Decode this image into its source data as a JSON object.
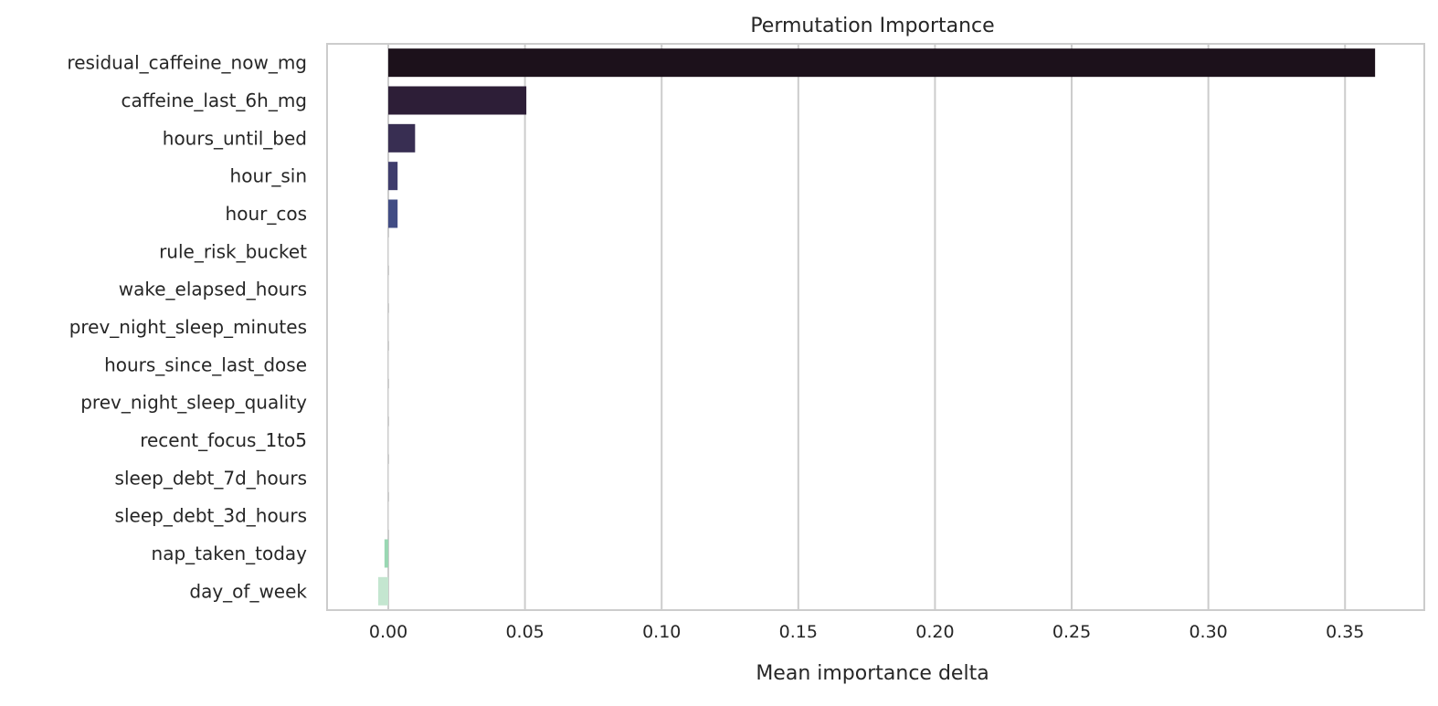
{
  "chart_data": {
    "type": "bar",
    "orientation": "horizontal",
    "title": "Permutation Importance",
    "xlabel": "Mean importance delta",
    "ylabel": "",
    "xlim": [
      -0.0224,
      0.379
    ],
    "xticks": [
      0.0,
      0.05,
      0.1,
      0.15,
      0.2,
      0.25,
      0.3,
      0.35
    ],
    "xtick_labels": [
      "0.00",
      "0.05",
      "0.10",
      "0.15",
      "0.20",
      "0.25",
      "0.30",
      "0.35"
    ],
    "grid": "vertical",
    "categories": [
      "residual_caffeine_now_mg",
      "caffeine_last_6h_mg",
      "hours_until_bed",
      "hour_sin",
      "hour_cos",
      "rule_risk_bucket",
      "wake_elapsed_hours",
      "prev_night_sleep_minutes",
      "hours_since_last_dose",
      "prev_night_sleep_quality",
      "recent_focus_1to5",
      "sleep_debt_7d_hours",
      "sleep_debt_3d_hours",
      "nap_taken_today",
      "day_of_week"
    ],
    "values": [
      0.361,
      0.0505,
      0.0098,
      0.0034,
      0.0034,
      0.0,
      0.0,
      0.0,
      0.0,
      0.0,
      0.0,
      0.0,
      0.0,
      -0.0014,
      -0.0037
    ],
    "colors": [
      "#1c111b",
      "#2d1e37",
      "#382e52",
      "#3e3c6c",
      "#414c84",
      "#fdfdfd",
      "#fdfdfd",
      "#fdfdfd",
      "#fdfdfd",
      "#fdfdfd",
      "#fdfdfd",
      "#fdfdfd",
      "#fdfdfd",
      "#9ad7b3",
      "#c4e6d0"
    ]
  }
}
